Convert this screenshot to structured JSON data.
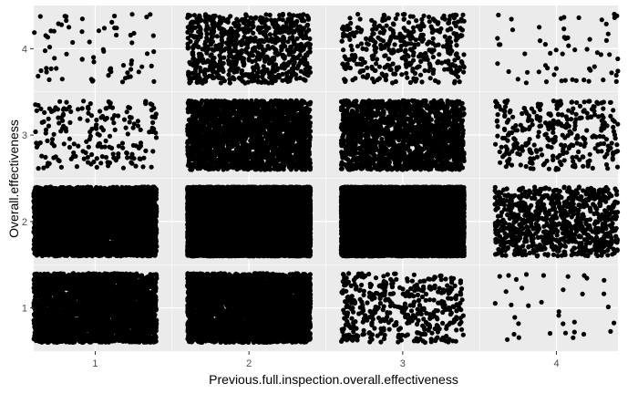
{
  "chart_data": {
    "type": "scatter",
    "title": "",
    "xlabel": "Previous.full.inspection.overall.effectiveness",
    "ylabel": "Overall.effectiveness",
    "x_ticks": [
      "1",
      "2",
      "3",
      "4"
    ],
    "y_ticks": [
      "1",
      "2",
      "3",
      "4"
    ],
    "xlim": [
      0.6,
      4.4
    ],
    "ylim": [
      0.5,
      4.5
    ],
    "jitter": [
      0.4,
      0.4
    ],
    "grid": true,
    "panel_background": "#ebebeb",
    "point_color": "#000000",
    "cells": [
      {
        "x": 1,
        "y": 1,
        "count": 3000
      },
      {
        "x": 1,
        "y": 2,
        "count": 4000
      },
      {
        "x": 1,
        "y": 3,
        "count": 200
      },
      {
        "x": 1,
        "y": 4,
        "count": 70
      },
      {
        "x": 2,
        "y": 1,
        "count": 3500
      },
      {
        "x": 2,
        "y": 2,
        "count": 15000
      },
      {
        "x": 2,
        "y": 3,
        "count": 2200
      },
      {
        "x": 2,
        "y": 4,
        "count": 800
      },
      {
        "x": 3,
        "y": 1,
        "count": 450
      },
      {
        "x": 3,
        "y": 2,
        "count": 15000
      },
      {
        "x": 3,
        "y": 3,
        "count": 1800
      },
      {
        "x": 3,
        "y": 4,
        "count": 400
      },
      {
        "x": 4,
        "y": 1,
        "count": 35
      },
      {
        "x": 4,
        "y": 2,
        "count": 900
      },
      {
        "x": 4,
        "y": 3,
        "count": 320
      },
      {
        "x": 4,
        "y": 4,
        "count": 60
      }
    ]
  }
}
